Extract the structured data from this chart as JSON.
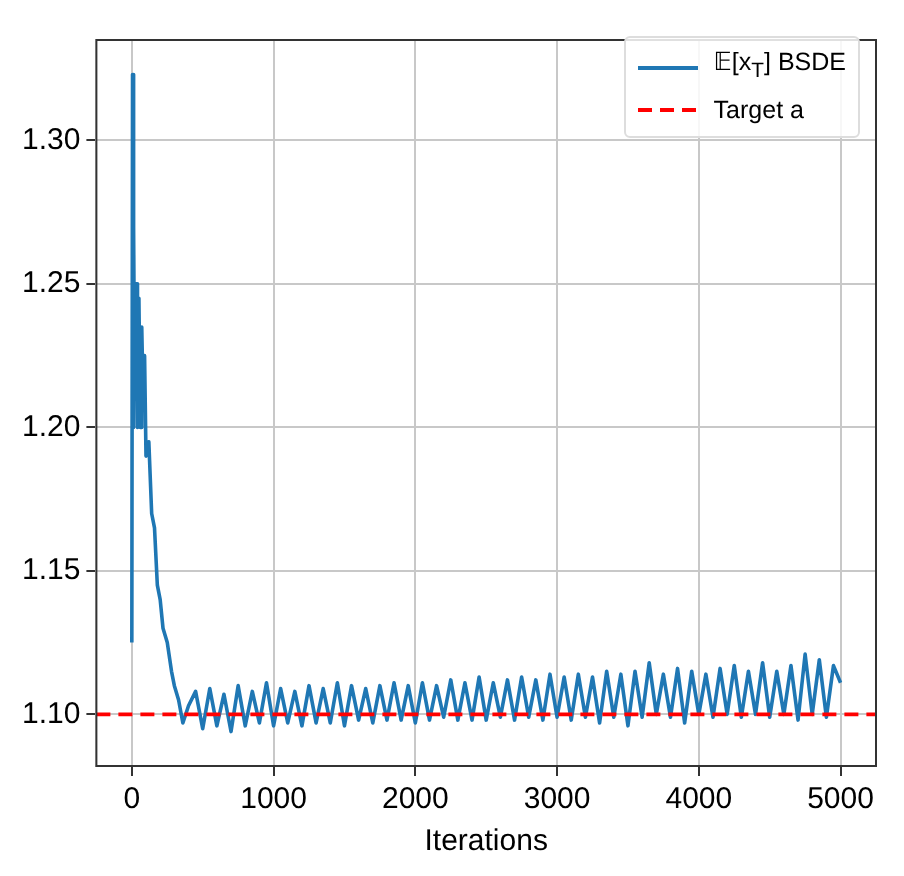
{
  "chart_data": {
    "type": "line",
    "xlabel": "Iterations",
    "series": [
      {
        "name": "𝔼[x$_{T}$] BSDE",
        "color": "#1f77b4",
        "x": [
          0,
          5,
          10,
          15,
          20,
          30,
          40,
          50,
          60,
          70,
          80,
          90,
          100,
          120,
          140,
          160,
          180,
          200,
          220,
          250,
          280,
          300,
          330,
          360,
          400,
          450,
          500,
          550,
          600,
          650,
          700,
          750,
          800,
          850,
          900,
          950,
          1000,
          1050,
          1100,
          1150,
          1200,
          1250,
          1300,
          1350,
          1400,
          1450,
          1500,
          1550,
          1600,
          1650,
          1700,
          1750,
          1800,
          1850,
          1900,
          1950,
          2000,
          2050,
          2100,
          2150,
          2200,
          2250,
          2300,
          2350,
          2400,
          2450,
          2500,
          2550,
          2600,
          2650,
          2700,
          2750,
          2800,
          2850,
          2900,
          2950,
          3000,
          3050,
          3100,
          3150,
          3200,
          3250,
          3300,
          3350,
          3400,
          3450,
          3500,
          3550,
          3600,
          3650,
          3700,
          3750,
          3800,
          3850,
          3900,
          3950,
          4000,
          4050,
          4100,
          4150,
          4200,
          4250,
          4300,
          4350,
          4400,
          4450,
          4500,
          4550,
          4600,
          4650,
          4700,
          4750,
          4800,
          4850,
          4900,
          4950,
          5000
        ],
        "values": [
          1.125,
          1.323,
          1.2,
          1.27,
          1.21,
          1.25,
          1.2,
          1.245,
          1.2,
          1.235,
          1.21,
          1.225,
          1.19,
          1.195,
          1.17,
          1.165,
          1.145,
          1.14,
          1.13,
          1.125,
          1.115,
          1.11,
          1.105,
          1.097,
          1.103,
          1.108,
          1.095,
          1.109,
          1.096,
          1.107,
          1.094,
          1.11,
          1.096,
          1.108,
          1.097,
          1.111,
          1.096,
          1.109,
          1.097,
          1.108,
          1.096,
          1.11,
          1.097,
          1.109,
          1.097,
          1.111,
          1.096,
          1.11,
          1.098,
          1.109,
          1.097,
          1.11,
          1.098,
          1.111,
          1.098,
          1.11,
          1.097,
          1.111,
          1.098,
          1.11,
          1.099,
          1.112,
          1.098,
          1.111,
          1.098,
          1.113,
          1.098,
          1.111,
          1.099,
          1.112,
          1.098,
          1.113,
          1.099,
          1.112,
          1.098,
          1.114,
          1.099,
          1.113,
          1.098,
          1.114,
          1.099,
          1.113,
          1.097,
          1.115,
          1.099,
          1.114,
          1.096,
          1.115,
          1.099,
          1.118,
          1.1,
          1.114,
          1.099,
          1.116,
          1.097,
          1.115,
          1.1,
          1.114,
          1.099,
          1.116,
          1.1,
          1.117,
          1.099,
          1.115,
          1.1,
          1.118,
          1.099,
          1.115,
          1.1,
          1.117,
          1.098,
          1.121,
          1.1,
          1.119,
          1.099,
          1.117,
          1.111
        ]
      }
    ],
    "ref_lines": [
      {
        "axis": "y",
        "value": 1.1,
        "label": "Target a",
        "color": "#ff0000",
        "line_style": "dashed"
      }
    ],
    "xlim": [
      -250,
      5250
    ],
    "xticks": [
      0,
      1000,
      2000,
      3000,
      4000,
      5000
    ],
    "ylim": [
      1.082,
      1.335
    ],
    "yticks": [
      {
        "value": 1.1,
        "label": "1.10"
      },
      1.15,
      {
        "value": 1.2,
        "label": "1.20"
      },
      1.25,
      {
        "value": 1.3,
        "label": "1.30"
      }
    ],
    "grid": true,
    "legend": "top right",
    "marker": "none",
    "line_style": "solid"
  }
}
